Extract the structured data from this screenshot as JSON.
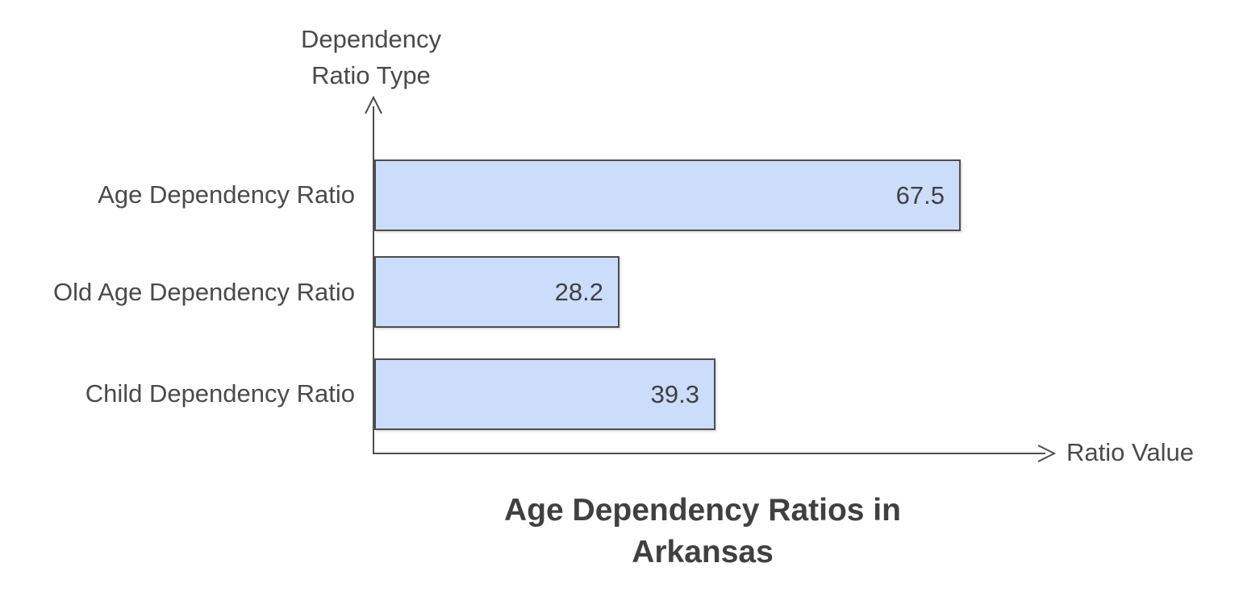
{
  "chart_data": {
    "type": "bar",
    "orientation": "horizontal",
    "title": "Age Dependency Ratios in Arkansas",
    "xlabel": "Ratio Value",
    "ylabel": "Dependency Ratio Type",
    "categories": [
      "Age Dependency Ratio",
      "Old Age Dependency Ratio",
      "Child Dependency Ratio"
    ],
    "values": [
      67.5,
      28.2,
      39.3
    ],
    "xlim": [
      0,
      78
    ],
    "grid": false,
    "legend": false,
    "value_labels_position": "inside-end"
  },
  "colors": {
    "background": "#FFFFFF",
    "bar_fill": "#CCDDFB",
    "bar_border": "#4D4D4D",
    "axis": "#4D4D4D",
    "category_text": "#4A4A4A",
    "value_text": "#404040",
    "title_text": "#404040"
  }
}
